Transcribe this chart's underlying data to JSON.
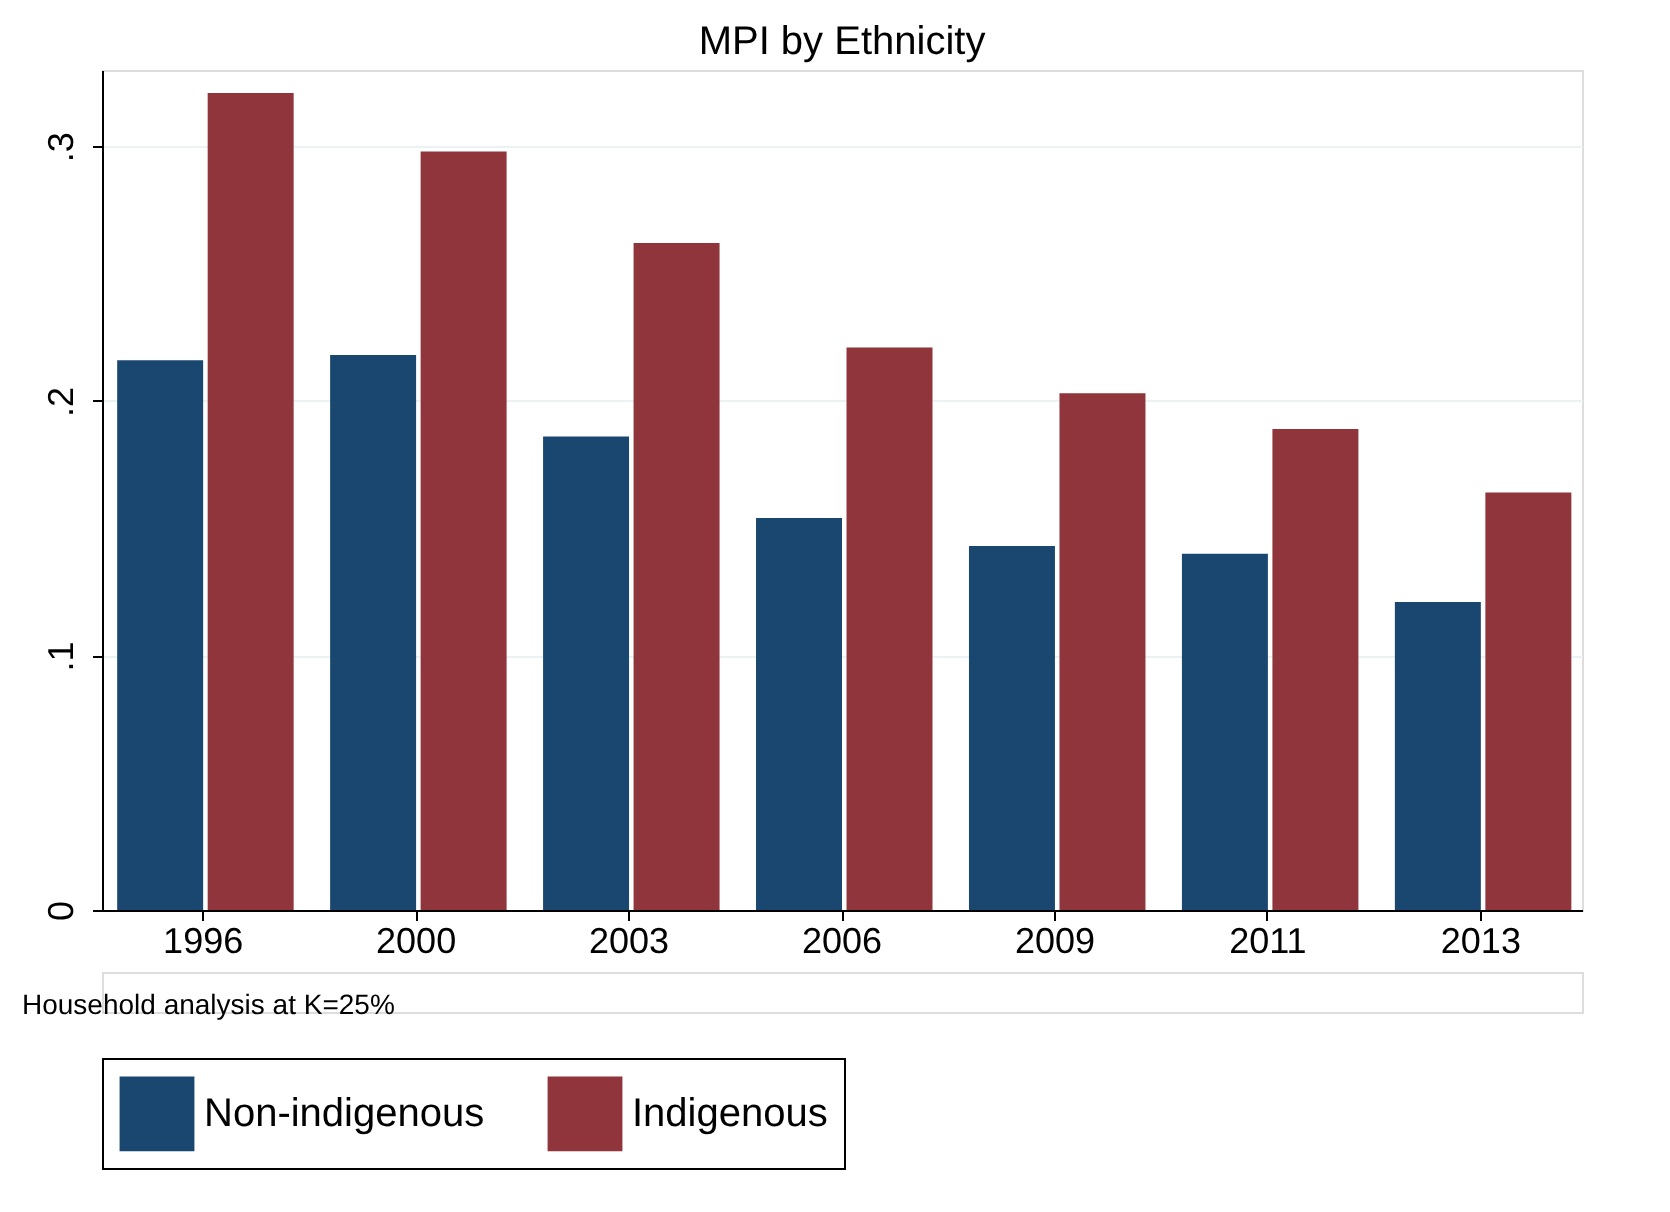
{
  "chart_data": {
    "type": "bar",
    "title": "MPI by Ethnicity",
    "categories": [
      "1996",
      "2000",
      "2003",
      "2006",
      "2009",
      "2011",
      "2013"
    ],
    "series": [
      {
        "name": "Non-indigenous",
        "color": "#1a476f",
        "values": [
          0.216,
          0.218,
          0.186,
          0.154,
          0.143,
          0.14,
          0.121
        ]
      },
      {
        "name": "Indigenous",
        "color": "#90353b",
        "values": [
          0.321,
          0.298,
          0.262,
          0.221,
          0.203,
          0.189,
          0.164
        ]
      }
    ],
    "ylim": [
      0,
      0.33
    ],
    "yticks": [
      {
        "value": 0,
        "label": "0"
      },
      {
        "value": 0.1,
        "label": ".1"
      },
      {
        "value": 0.2,
        "label": ".2"
      },
      {
        "value": 0.3,
        "label": ".3"
      }
    ],
    "grid": "y",
    "legend": "bottom",
    "annotations": [
      "Household analysis at K=25%"
    ]
  }
}
